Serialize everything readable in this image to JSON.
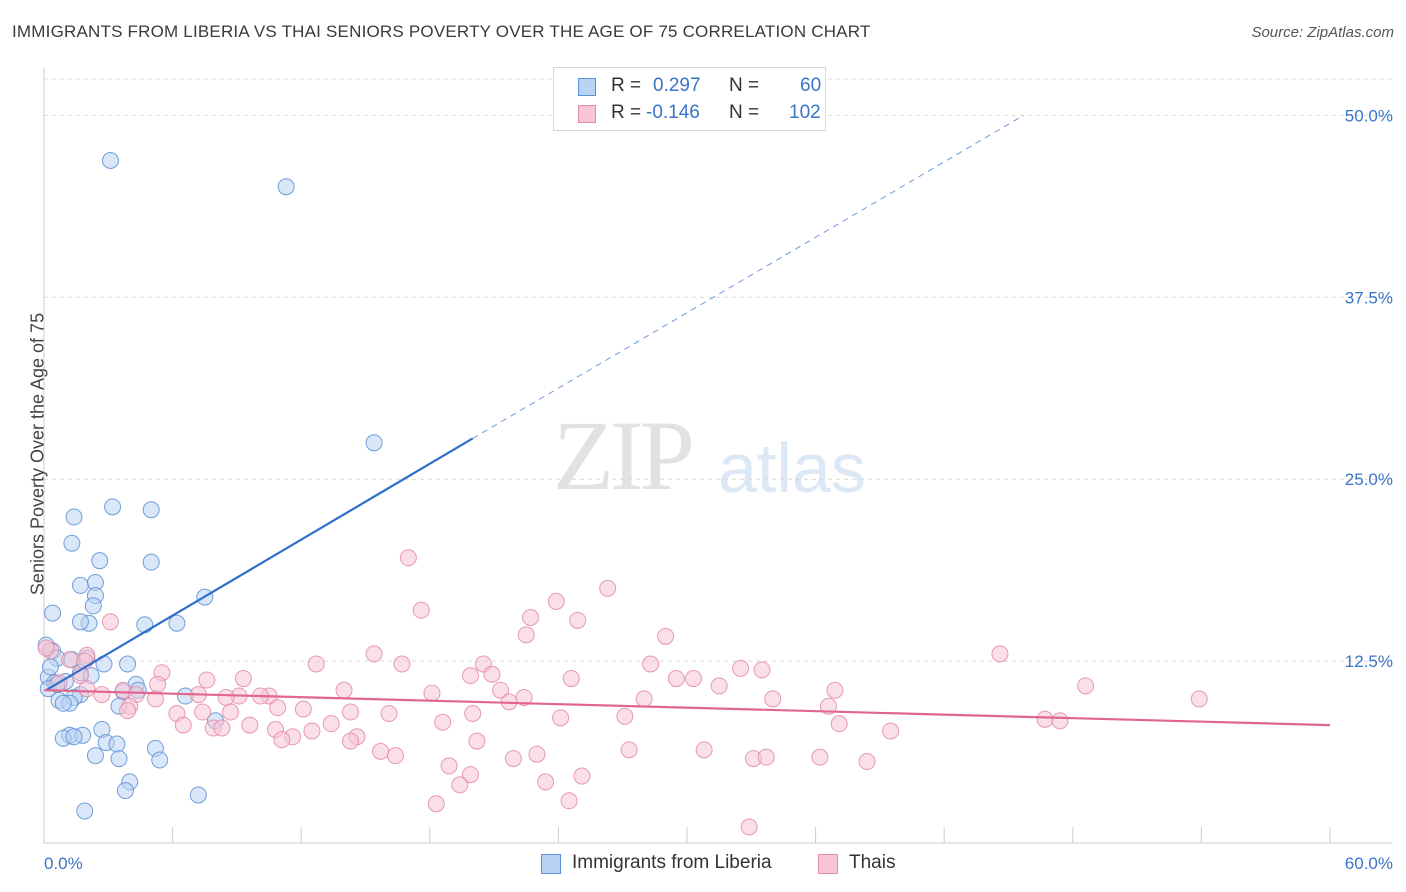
{
  "title": "IMMIGRANTS FROM LIBERIA VS THAI SENIORS POVERTY OVER THE AGE OF 75 CORRELATION CHART",
  "source": "Source: ZipAtlas.com",
  "watermark": {
    "zip": "ZIP",
    "atlas": "atlas"
  },
  "legend": {
    "rows": [
      {
        "r_label": "R =",
        "r_value": "0.297",
        "n_label": "N =",
        "n_value": "60"
      },
      {
        "r_label": "R =",
        "r_value": "-0.146",
        "n_label": "N =",
        "n_value": "102"
      }
    ]
  },
  "colors": {
    "liberia_fill": "#b9d3f3",
    "liberia_stroke": "#5b8fd6",
    "liberia_line": "#2f6fcc",
    "thai_fill": "#f7c5d5",
    "thai_stroke": "#e28aa7",
    "thai_line": "#e06690",
    "axis_text": "#3a74c8",
    "grid": "#d9d9d9"
  },
  "chart_data": {
    "type": "scatter",
    "title": "IMMIGRANTS FROM LIBERIA VS THAI SENIORS POVERTY OVER THE AGE OF 75 CORRELATION CHART",
    "xlabel": "",
    "ylabel": "Seniors Poverty Over the Age of 75",
    "xlim": [
      0,
      60
    ],
    "ylim": [
      0,
      52.5
    ],
    "x_tick_labels": [
      "0.0%",
      "60.0%"
    ],
    "y_ticks": [
      12.5,
      25.0,
      37.5,
      50.0
    ],
    "y_tick_labels": [
      "12.5%",
      "25.0%",
      "37.5%",
      "50.0%"
    ],
    "grid": true,
    "legend_position": "top-center",
    "series": [
      {
        "name": "Immigrants from Liberia",
        "r": 0.297,
        "n": 60,
        "trend": {
          "x0": 0.1,
          "y0": 10.5,
          "x1": 20.0,
          "y1": 27.8,
          "dash_to_x": 45.7,
          "dash_to_y": 50.0
        },
        "points": [
          [
            3.1,
            46.9
          ],
          [
            11.3,
            45.1
          ],
          [
            15.4,
            27.5
          ],
          [
            1.4,
            22.4
          ],
          [
            3.2,
            23.1
          ],
          [
            5.0,
            22.9
          ],
          [
            1.3,
            20.6
          ],
          [
            2.6,
            19.4
          ],
          [
            5.0,
            19.3
          ],
          [
            1.7,
            17.7
          ],
          [
            2.4,
            17.9
          ],
          [
            2.4,
            17.0
          ],
          [
            7.5,
            16.9
          ],
          [
            2.3,
            16.3
          ],
          [
            0.4,
            15.8
          ],
          [
            2.1,
            15.1
          ],
          [
            1.7,
            15.2
          ],
          [
            4.7,
            15.0
          ],
          [
            6.2,
            15.1
          ],
          [
            0.4,
            13.2
          ],
          [
            0.6,
            12.7
          ],
          [
            2.0,
            12.7
          ],
          [
            1.3,
            12.6
          ],
          [
            2.8,
            12.3
          ],
          [
            3.9,
            12.3
          ],
          [
            1.7,
            11.7
          ],
          [
            2.2,
            11.5
          ],
          [
            0.2,
            11.4
          ],
          [
            0.5,
            11.0
          ],
          [
            1.0,
            11.1
          ],
          [
            0.6,
            10.9
          ],
          [
            4.3,
            10.9
          ],
          [
            0.2,
            10.6
          ],
          [
            1.7,
            10.2
          ],
          [
            3.7,
            10.4
          ],
          [
            1.4,
            10.0
          ],
          [
            6.6,
            10.1
          ],
          [
            0.7,
            9.8
          ],
          [
            1.2,
            9.6
          ],
          [
            3.5,
            9.4
          ],
          [
            0.9,
            9.6
          ],
          [
            8.0,
            8.4
          ],
          [
            2.7,
            7.8
          ],
          [
            1.2,
            7.4
          ],
          [
            0.9,
            7.2
          ],
          [
            1.8,
            7.4
          ],
          [
            1.4,
            7.3
          ],
          [
            2.9,
            6.9
          ],
          [
            3.4,
            6.8
          ],
          [
            5.2,
            6.5
          ],
          [
            2.4,
            6.0
          ],
          [
            3.5,
            5.8
          ],
          [
            5.4,
            5.7
          ],
          [
            4.0,
            4.2
          ],
          [
            3.8,
            3.6
          ],
          [
            7.2,
            3.3
          ],
          [
            1.9,
            2.2
          ],
          [
            0.1,
            13.6
          ],
          [
            0.3,
            12.1
          ],
          [
            4.4,
            10.5
          ]
        ]
      },
      {
        "name": "Thais",
        "r": -0.146,
        "n": 102,
        "trend": {
          "x0": 0.0,
          "y0": 10.5,
          "x1": 60.0,
          "y1": 8.1
        },
        "points": [
          [
            17.0,
            19.6
          ],
          [
            26.3,
            17.5
          ],
          [
            23.9,
            16.6
          ],
          [
            17.6,
            16.0
          ],
          [
            22.7,
            15.5
          ],
          [
            3.1,
            15.2
          ],
          [
            24.9,
            15.3
          ],
          [
            22.5,
            14.3
          ],
          [
            29.0,
            14.2
          ],
          [
            15.4,
            13.0
          ],
          [
            44.6,
            13.0
          ],
          [
            0.3,
            13.2
          ],
          [
            2.0,
            12.9
          ],
          [
            1.2,
            12.6
          ],
          [
            1.9,
            12.5
          ],
          [
            12.7,
            12.3
          ],
          [
            16.7,
            12.3
          ],
          [
            20.5,
            12.3
          ],
          [
            28.3,
            12.3
          ],
          [
            32.5,
            12.0
          ],
          [
            33.5,
            11.9
          ],
          [
            5.5,
            11.7
          ],
          [
            20.9,
            11.6
          ],
          [
            19.9,
            11.5
          ],
          [
            1.7,
            11.5
          ],
          [
            7.6,
            11.2
          ],
          [
            9.3,
            11.3
          ],
          [
            24.6,
            11.3
          ],
          [
            29.5,
            11.3
          ],
          [
            30.3,
            11.3
          ],
          [
            0.7,
            11.0
          ],
          [
            31.5,
            10.8
          ],
          [
            48.6,
            10.8
          ],
          [
            5.3,
            10.9
          ],
          [
            2.0,
            10.6
          ],
          [
            3.7,
            10.5
          ],
          [
            14.0,
            10.5
          ],
          [
            18.1,
            10.3
          ],
          [
            21.3,
            10.5
          ],
          [
            36.9,
            10.5
          ],
          [
            2.7,
            10.2
          ],
          [
            4.3,
            10.2
          ],
          [
            7.2,
            10.2
          ],
          [
            9.1,
            10.1
          ],
          [
            10.5,
            10.1
          ],
          [
            8.5,
            10.0
          ],
          [
            5.2,
            9.9
          ],
          [
            10.1,
            10.1
          ],
          [
            22.4,
            10.0
          ],
          [
            28.0,
            9.9
          ],
          [
            34.0,
            9.9
          ],
          [
            53.9,
            9.9
          ],
          [
            21.7,
            9.7
          ],
          [
            36.6,
            9.4
          ],
          [
            4.0,
            9.4
          ],
          [
            10.9,
            9.3
          ],
          [
            12.1,
            9.2
          ],
          [
            3.9,
            9.1
          ],
          [
            6.2,
            8.9
          ],
          [
            7.4,
            9.0
          ],
          [
            8.7,
            9.0
          ],
          [
            14.3,
            9.0
          ],
          [
            16.1,
            8.9
          ],
          [
            20.0,
            8.9
          ],
          [
            24.1,
            8.6
          ],
          [
            27.1,
            8.7
          ],
          [
            46.7,
            8.5
          ],
          [
            47.4,
            8.4
          ],
          [
            6.5,
            8.1
          ],
          [
            9.6,
            8.1
          ],
          [
            13.4,
            8.2
          ],
          [
            18.6,
            8.3
          ],
          [
            37.1,
            8.2
          ],
          [
            7.9,
            7.9
          ],
          [
            10.8,
            7.8
          ],
          [
            12.5,
            7.7
          ],
          [
            11.6,
            7.3
          ],
          [
            14.6,
            7.3
          ],
          [
            39.5,
            7.7
          ],
          [
            11.1,
            7.1
          ],
          [
            14.3,
            7.0
          ],
          [
            20.2,
            7.0
          ],
          [
            15.7,
            6.3
          ],
          [
            16.4,
            6.0
          ],
          [
            18.9,
            5.3
          ],
          [
            21.9,
            5.8
          ],
          [
            23.0,
            6.1
          ],
          [
            27.3,
            6.4
          ],
          [
            30.8,
            6.4
          ],
          [
            33.1,
            5.8
          ],
          [
            33.7,
            5.9
          ],
          [
            36.2,
            5.9
          ],
          [
            38.4,
            5.6
          ],
          [
            19.9,
            4.7
          ],
          [
            23.4,
            4.2
          ],
          [
            25.1,
            4.6
          ],
          [
            19.4,
            4.0
          ],
          [
            18.3,
            2.7
          ],
          [
            24.5,
            2.9
          ],
          [
            32.9,
            1.1
          ],
          [
            8.3,
            7.9
          ],
          [
            0.1,
            13.4
          ]
        ]
      }
    ]
  },
  "bottom_legend": {
    "liberia": "Immigrants from Liberia",
    "thai": "Thais"
  }
}
